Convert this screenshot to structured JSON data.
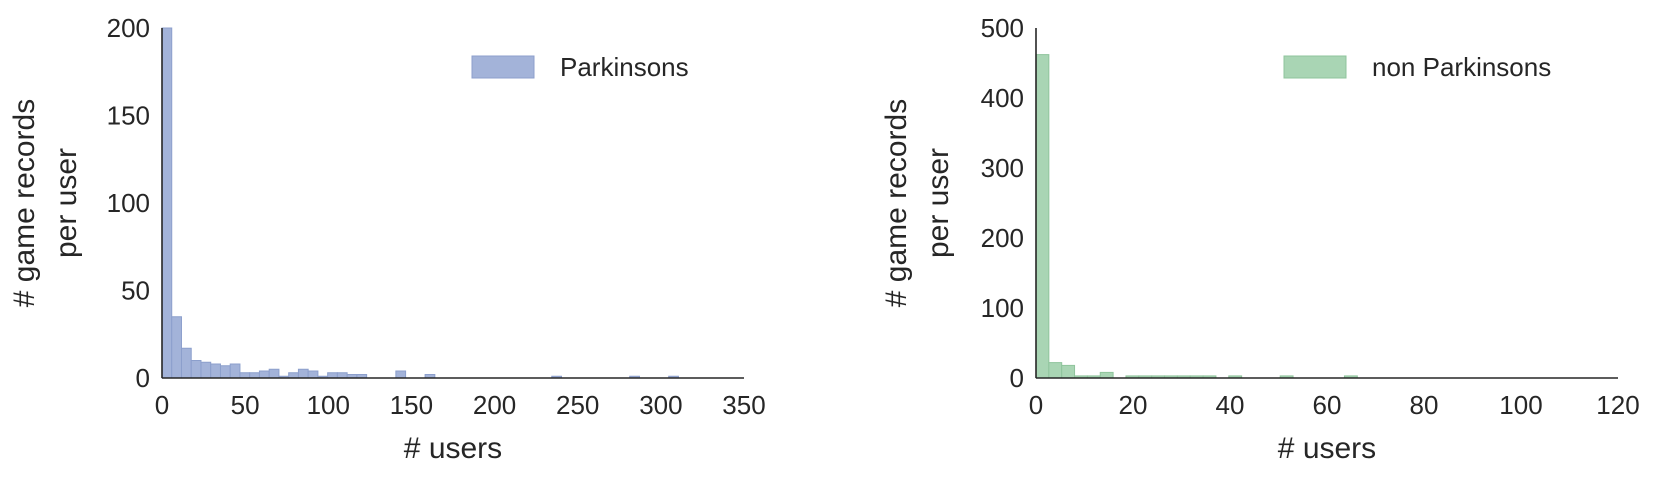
{
  "chart_data": [
    {
      "type": "bar",
      "subtype": "histogram",
      "xlabel": "# users",
      "ylabel": [
        "# game records",
        "per user"
      ],
      "xlim": [
        0,
        350
      ],
      "ylim": [
        0,
        200
      ],
      "xticks": [
        "0",
        "50",
        "100",
        "150",
        "200",
        "250",
        "300",
        "350"
      ],
      "yticks": [
        "0",
        "50",
        "100",
        "150",
        "200"
      ],
      "grid": false,
      "legend_position": "top-right",
      "series": [
        {
          "name": "Parkinsons",
          "color": "#a3b3d9",
          "edge_color": "#8c9fcc",
          "bin_width": 5.86,
          "values": [
            200,
            35,
            17,
            10,
            9,
            8,
            7,
            8,
            3,
            3,
            4,
            5,
            1,
            3,
            5,
            4,
            1,
            3,
            3,
            2,
            2,
            0,
            0,
            0,
            4,
            0,
            0,
            2,
            0,
            0,
            0,
            0,
            0,
            0,
            0,
            0,
            0,
            0,
            0,
            0,
            1,
            0,
            0,
            0,
            0,
            0,
            0,
            0,
            1,
            0,
            0,
            0,
            1,
            0,
            0,
            0,
            0,
            0,
            0,
            0
          ]
        }
      ]
    },
    {
      "type": "bar",
      "subtype": "histogram",
      "xlabel": "# users",
      "ylabel": [
        "# game records",
        "per user"
      ],
      "xlim": [
        0,
        120
      ],
      "ylim": [
        0,
        500
      ],
      "xticks": [
        "0",
        "20",
        "40",
        "60",
        "80",
        "100",
        "120"
      ],
      "yticks": [
        "0",
        "100",
        "200",
        "300",
        "400",
        "500"
      ],
      "grid": false,
      "legend_position": "top-right",
      "series": [
        {
          "name": "non Parkinsons",
          "color": "#a9d5b4",
          "edge_color": "#8fc49c",
          "bin_width": 2.65,
          "values": [
            462,
            22,
            18,
            3,
            3,
            8,
            0,
            3,
            3,
            3,
            3,
            3,
            3,
            3,
            0,
            3,
            0,
            0,
            0,
            3,
            0,
            0,
            0,
            0,
            3,
            0,
            0,
            0,
            0,
            0,
            0,
            0,
            0,
            0,
            0,
            0,
            0,
            0,
            0,
            0,
            0,
            0,
            0,
            0,
            0
          ]
        }
      ]
    }
  ]
}
